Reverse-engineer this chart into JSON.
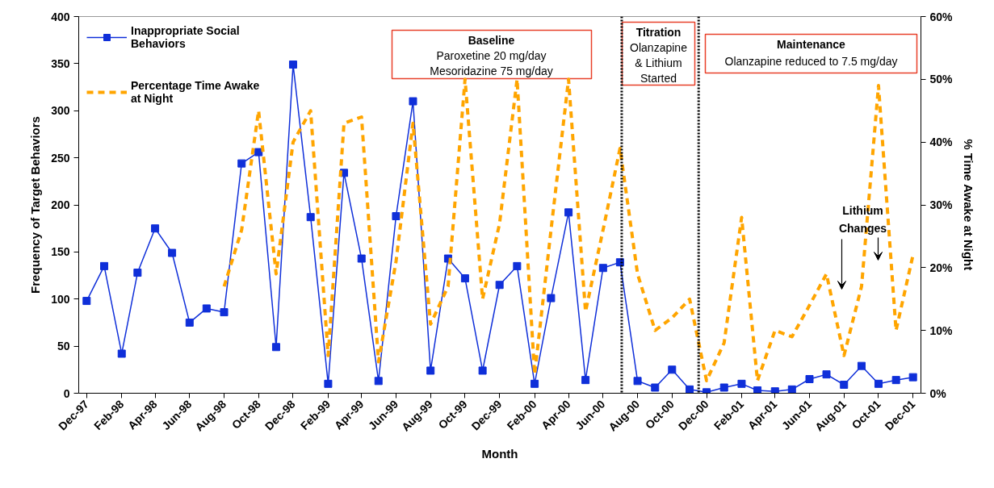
{
  "chart_data": {
    "type": "line",
    "xlabel": "Month",
    "ylabel": "Frequency of Target Behaviors",
    "y2label": "% Time Awake at Night",
    "x": [
      "1997-12",
      "1998-01",
      "1998-02",
      "1998-03",
      "1998-04",
      "1998-05",
      "1998-06",
      "1998-07",
      "1998-08",
      "1998-09",
      "1998-10",
      "1998-11",
      "1998-12",
      "1999-01",
      "1999-02",
      "1999-03",
      "1999-04",
      "1999-05",
      "1999-06",
      "1999-07",
      "1999-08",
      "1999-09",
      "1999-10",
      "1999-11",
      "1999-12",
      "2000-01",
      "2000-02",
      "2000-03",
      "2000-04",
      "2000-05",
      "2000-06",
      "2000-07",
      "2000-08",
      "2000-09",
      "2000-10",
      "2000-11",
      "2000-12",
      "2001-01",
      "2001-02",
      "2001-03",
      "2001-04",
      "2001-05",
      "2001-06",
      "2001-07",
      "2001-08",
      "2001-09",
      "2001-10",
      "2001-11",
      "2001-12"
    ],
    "series": [
      {
        "name": "Inappropriate Social Behaviors",
        "color": "#0f2fd9",
        "marker": "square",
        "line_style": "solid",
        "values": [
          98,
          135,
          42,
          128,
          175,
          149,
          75,
          90,
          86,
          244,
          256,
          49,
          349,
          187,
          10,
          234,
          143,
          13,
          188,
          310,
          24,
          143,
          122,
          24,
          115,
          135,
          10,
          101,
          192,
          14,
          133,
          139,
          13,
          6,
          25,
          4,
          1,
          6,
          10,
          3,
          2,
          4,
          15,
          20,
          9,
          29,
          10,
          14,
          17
        ]
      },
      {
        "name": "Percentage Time Awake at Night",
        "color": "#ffa500",
        "marker": "none",
        "line_style": "dashed",
        "axis": "y2",
        "values": [
          null,
          null,
          null,
          null,
          null,
          null,
          null,
          null,
          17,
          26,
          45,
          19,
          40,
          45,
          6,
          43,
          44,
          5,
          21,
          43,
          11,
          17,
          50,
          15,
          27,
          50,
          3,
          26,
          50,
          13,
          26,
          39,
          19,
          10,
          12,
          15,
          2,
          8,
          28,
          2,
          10,
          9,
          14,
          19,
          6,
          17,
          49,
          10,
          22
        ]
      }
    ],
    "xlim": [
      "1997-11-17",
      "2001-12-15"
    ],
    "xticks": [
      {
        "value": "1997-12",
        "label": "Dec-97"
      },
      {
        "value": "1998-02",
        "label": "Feb-98"
      },
      {
        "value": "1998-04",
        "label": "Apr-98"
      },
      {
        "value": "1998-06",
        "label": "Jun-98"
      },
      {
        "value": "1998-08",
        "label": "Aug-98"
      },
      {
        "value": "1998-10",
        "label": "Oct-98"
      },
      {
        "value": "1998-12",
        "label": "Dec-98"
      },
      {
        "value": "1999-02",
        "label": "Feb-99"
      },
      {
        "value": "1999-04",
        "label": "Apr-99"
      },
      {
        "value": "1999-06",
        "label": "Jun-99"
      },
      {
        "value": "1999-08",
        "label": "Aug-99"
      },
      {
        "value": "1999-10",
        "label": "Oct-99"
      },
      {
        "value": "1999-12",
        "label": "Dec-99"
      },
      {
        "value": "2000-02",
        "label": "Feb-00"
      },
      {
        "value": "2000-04",
        "label": "Apr-00"
      },
      {
        "value": "2000-06",
        "label": "Jun-00"
      },
      {
        "value": "2000-08",
        "label": "Aug-00"
      },
      {
        "value": "2000-10",
        "label": "Oct-00"
      },
      {
        "value": "2000-12",
        "label": "Dec-00"
      },
      {
        "value": "2001-02",
        "label": "Feb-01"
      },
      {
        "value": "2001-04",
        "label": "Apr-01"
      },
      {
        "value": "2001-06",
        "label": "Jun-01"
      },
      {
        "value": "2001-08",
        "label": "Aug-01"
      },
      {
        "value": "2001-10",
        "label": "Oct-01"
      },
      {
        "value": "2001-12",
        "label": "Dec-01"
      }
    ],
    "ylim": [
      0,
      400
    ],
    "yticks": [
      0,
      50,
      100,
      150,
      200,
      250,
      300,
      350,
      400
    ],
    "y2lim": [
      0,
      60
    ],
    "y2ticks": [
      {
        "value": 0,
        "label": "0%"
      },
      {
        "value": 10,
        "label": "10%"
      },
      {
        "value": 20,
        "label": "20%"
      },
      {
        "value": 30,
        "label": "30%"
      },
      {
        "value": 40,
        "label": "40%"
      },
      {
        "value": 50,
        "label": "50%"
      },
      {
        "value": 60,
        "label": "60%"
      }
    ],
    "ref_lines": [
      {
        "axis": "x",
        "value": "2000-07-04",
        "color": "#000000",
        "line_style": "dotted"
      },
      {
        "axis": "x",
        "value": "2000-11-17",
        "color": "#000000",
        "line_style": "dotted"
      }
    ],
    "annotations": [
      "Baseline\nParoxetine 20 mg/day\nMesoridazine 75 mg/day",
      "Titration\nOlanzapine\n& Lithium\nStarted",
      "Maintenance\nOlanzapine reduced to 7.5 mg/day",
      "Lithium\nChanges"
    ],
    "grid": false,
    "legend": "top left"
  }
}
